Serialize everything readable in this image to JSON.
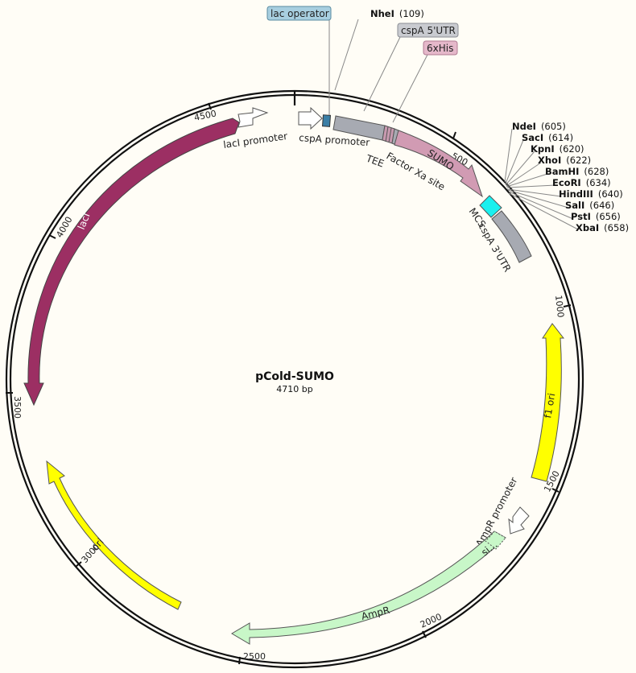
{
  "map": {
    "name": "pCold-SUMO",
    "length_label": "4710 bp",
    "length_bp": 4710
  },
  "colors": {
    "lacI": "#9c2f63",
    "ori": "#ffff00",
    "f1_ori": "#ffff00",
    "AmpR": "#c8f7c8",
    "SUMO": "#d19bb3",
    "cspA_UTR": "#a7aab2",
    "MCS": "#19f0ef",
    "lac_operator": "#3b7fa6",
    "promoter": "#ffffff"
  },
  "ticks": [
    "500",
    "1000",
    "1500",
    "2000",
    "2500",
    "3000",
    "3500",
    "4000",
    "4500"
  ],
  "features": {
    "lacI": "lacI",
    "lacI_promoter": "lacI promoter",
    "cspA_promoter": "cspA promoter",
    "TEE": "TEE",
    "factor_xa": "Factor Xa site",
    "SUMO": "SUMO",
    "MCS": "MCS",
    "cspA_3utr": "cspA 3'UTR",
    "f1_ori": "f1 ori",
    "ampr_promoter": "AmpR promoter",
    "ampr": "AmpR",
    "signal": "si...",
    "ori": "ori"
  },
  "callouts": {
    "lac_operator": "lac operator",
    "cspA_5utr": "cspA 5'UTR",
    "his6": "6xHis"
  },
  "sites": [
    {
      "name": "NheI",
      "pos": "(109)"
    },
    {
      "name": "NdeI",
      "pos": "(605)"
    },
    {
      "name": "SacI",
      "pos": "(614)"
    },
    {
      "name": "KpnI",
      "pos": "(620)"
    },
    {
      "name": "XhoI",
      "pos": "(622)"
    },
    {
      "name": "BamHI",
      "pos": "(628)"
    },
    {
      "name": "EcoRI",
      "pos": "(634)"
    },
    {
      "name": "HindIII",
      "pos": "(640)"
    },
    {
      "name": "SalI",
      "pos": "(646)"
    },
    {
      "name": "PstI",
      "pos": "(656)"
    },
    {
      "name": "XbaI",
      "pos": "(658)"
    }
  ]
}
